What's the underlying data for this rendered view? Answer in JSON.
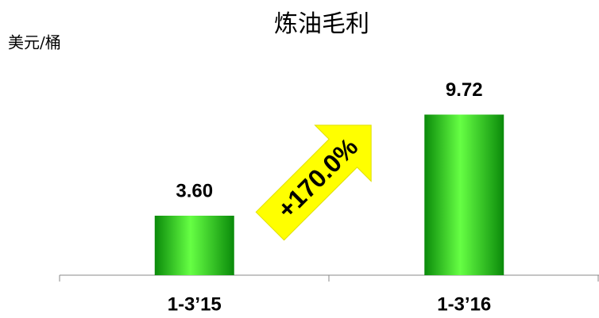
{
  "chart_data": {
    "type": "bar",
    "title": "炼油毛利",
    "y_label": "美元/桶",
    "categories": [
      "1-3’15",
      "1-3’16"
    ],
    "values": [
      3.6,
      9.72
    ],
    "value_labels": [
      "3.60",
      "9.72"
    ],
    "color": "#22bb11",
    "ylim": [
      0,
      12
    ],
    "annotation": "+170.0%",
    "grid": false
  }
}
